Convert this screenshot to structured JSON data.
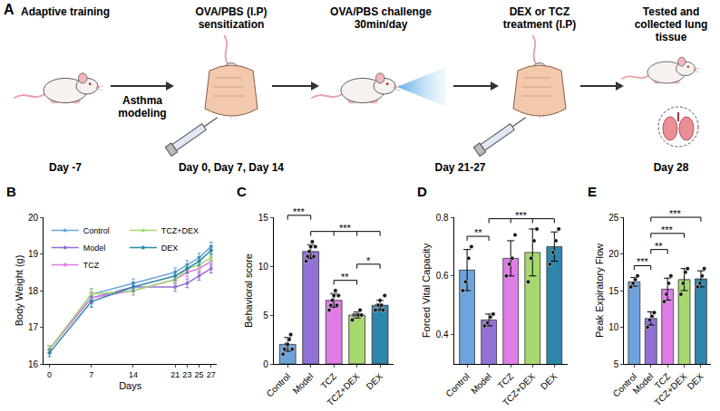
{
  "diagram": {
    "letter": "A",
    "arrow_label": "Asthma modeling",
    "timeline": [
      {
        "day": "Day -7",
        "steps": [
          "Adaptive training"
        ]
      },
      {
        "day": "Day 0, Day 7, Day 14",
        "steps": [
          "OVA/PBS (I.P) sensitization"
        ]
      },
      {
        "day": "Day 21-27",
        "steps": [
          "OVA/PBS challenge 30min/day",
          "DEX or TCZ treatment (I.P)"
        ]
      },
      {
        "day": "Day 28",
        "steps": [
          "Tested and collected lung tissue"
        ]
      }
    ]
  },
  "chart_data": [
    {
      "panel": "B",
      "type": "line",
      "x_label": "Days",
      "y_label": "Body Weight (g)",
      "x": [
        0,
        7,
        14,
        21,
        23,
        25,
        27
      ],
      "xlim": [
        -1,
        28
      ],
      "xticks": [
        0,
        7,
        14,
        21,
        23,
        25,
        27
      ],
      "ylim": [
        16,
        20
      ],
      "yticks": [
        16,
        17,
        18,
        19,
        20
      ],
      "grid": false,
      "legend": "top left",
      "marker": "circle",
      "series": [
        {
          "name": "Control",
          "color": "#6fa3dc",
          "values": [
            16.4,
            17.9,
            18.2,
            18.5,
            18.7,
            18.9,
            19.2
          ],
          "errors": [
            0.1,
            0.15,
            0.12,
            0.12,
            0.12,
            0.12,
            0.12
          ]
        },
        {
          "name": "Model",
          "color": "#9370d6",
          "values": [
            16.4,
            17.8,
            18.1,
            18.1,
            18.2,
            18.4,
            18.6
          ],
          "errors": [
            0.1,
            0.15,
            0.12,
            0.12,
            0.12,
            0.12,
            0.12
          ]
        },
        {
          "name": "TCZ",
          "color": "#e07ce6",
          "values": [
            16.4,
            17.8,
            18.0,
            18.3,
            18.5,
            18.6,
            18.8
          ],
          "errors": [
            0.1,
            0.15,
            0.12,
            0.12,
            0.12,
            0.12,
            0.12
          ]
        },
        {
          "name": "TCZ+DEX",
          "color": "#a6d86e",
          "values": [
            16.4,
            17.9,
            18.0,
            18.3,
            18.6,
            18.7,
            18.9
          ],
          "errors": [
            0.1,
            0.15,
            0.12,
            0.12,
            0.12,
            0.12,
            0.12
          ]
        },
        {
          "name": "DEX",
          "color": "#2e86ab",
          "values": [
            16.3,
            17.7,
            18.1,
            18.4,
            18.6,
            18.8,
            19.1
          ],
          "errors": [
            0.1,
            0.15,
            0.12,
            0.12,
            0.12,
            0.12,
            0.12
          ]
        }
      ]
    },
    {
      "panel": "C",
      "type": "bar",
      "y_label": "Behavioral score",
      "categories": [
        "Control",
        "Model",
        "TCZ",
        "TCZ+DEX",
        "DEX"
      ],
      "colors": [
        "#6fa3dc",
        "#9370d6",
        "#e07ce6",
        "#a6d86e",
        "#2e86ab"
      ],
      "values": [
        2,
        11.5,
        6.5,
        5,
        6
      ],
      "errors": [
        0.7,
        0.7,
        0.7,
        0.3,
        0.5
      ],
      "points": [
        [
          1.0,
          1.5,
          2.0,
          2.0,
          2.5,
          3.0,
          1.5
        ],
        [
          10.5,
          11,
          11.5,
          12,
          12.5,
          11,
          12
        ],
        [
          5.5,
          6,
          6.5,
          7,
          7.5,
          6,
          7
        ],
        [
          4.5,
          5,
          5,
          5,
          5,
          5.5,
          5
        ],
        [
          5.5,
          6,
          6,
          6.5,
          6,
          5.5,
          7
        ]
      ],
      "ylim": [
        0,
        15
      ],
      "yticks": [
        0,
        5,
        10,
        15
      ],
      "grid": false,
      "marker": "circle",
      "comparisons": [
        {
          "groups": [
            "TCZ",
            "TCZ+DEX"
          ],
          "label": "**"
        },
        {
          "groups": [
            "TCZ+DEX",
            "DEX"
          ],
          "label": "*"
        },
        {
          "groups": [
            "Model",
            "TCZ",
            "TCZ+DEX",
            "DEX"
          ],
          "label": "***"
        },
        {
          "groups": [
            "Control",
            "Model"
          ],
          "label": "***"
        }
      ]
    },
    {
      "panel": "D",
      "type": "bar",
      "y_label": "Forced Vital Capacity",
      "categories": [
        "Control",
        "Model",
        "TCZ",
        "TCZ+DEX",
        "DEX"
      ],
      "colors": [
        "#6fa3dc",
        "#9370d6",
        "#e07ce6",
        "#a6d86e",
        "#2e86ab"
      ],
      "values": [
        0.62,
        0.45,
        0.66,
        0.68,
        0.7
      ],
      "errors": [
        0.07,
        0.02,
        0.06,
        0.08,
        0.05
      ],
      "points": [
        [
          0.55,
          0.58,
          0.66,
          0.7
        ],
        [
          0.43,
          0.44,
          0.46,
          0.47
        ],
        [
          0.6,
          0.64,
          0.66,
          0.74
        ],
        [
          0.58,
          0.66,
          0.72,
          0.76
        ],
        [
          0.64,
          0.68,
          0.72,
          0.76
        ]
      ],
      "ylim": [
        0.3,
        0.8
      ],
      "yticks": [
        0.4,
        0.6,
        0.8
      ],
      "grid": false,
      "marker": "circle",
      "comparisons": [
        {
          "groups": [
            "Control",
            "Model"
          ],
          "label": "**"
        },
        {
          "groups": [
            "Model",
            "TCZ",
            "TCZ+DEX",
            "DEX"
          ],
          "label": "***"
        }
      ]
    },
    {
      "panel": "E",
      "type": "bar",
      "y_label": "Peak Expiratory Flow",
      "categories": [
        "Control",
        "Model",
        "TCZ",
        "TCZ+DEX",
        "DEX"
      ],
      "colors": [
        "#6fa3dc",
        "#9370d6",
        "#e07ce6",
        "#a6d86e",
        "#2e86ab"
      ],
      "values": [
        16.2,
        11.2,
        15.2,
        16.5,
        16.6
      ],
      "errors": [
        0.6,
        0.9,
        1.5,
        1.5,
        1.1
      ],
      "points": [
        [
          15.5,
          16,
          16.5,
          17
        ],
        [
          10,
          11,
          11.5,
          12
        ],
        [
          13.5,
          14.5,
          16,
          17
        ],
        [
          14.5,
          16,
          17.5,
          18
        ],
        [
          15.5,
          16,
          17,
          18
        ]
      ],
      "ylim": [
        5,
        25
      ],
      "yticks": [
        5,
        10,
        15,
        20,
        25
      ],
      "grid": false,
      "marker": "circle",
      "comparisons": [
        {
          "groups": [
            "Control",
            "Model"
          ],
          "label": "***"
        },
        {
          "groups": [
            "Model",
            "TCZ"
          ],
          "label": "**"
        },
        {
          "groups": [
            "Model",
            "TCZ+DEX"
          ],
          "label": "***"
        },
        {
          "groups": [
            "Model",
            "DEX"
          ],
          "label": "***"
        }
      ]
    }
  ]
}
